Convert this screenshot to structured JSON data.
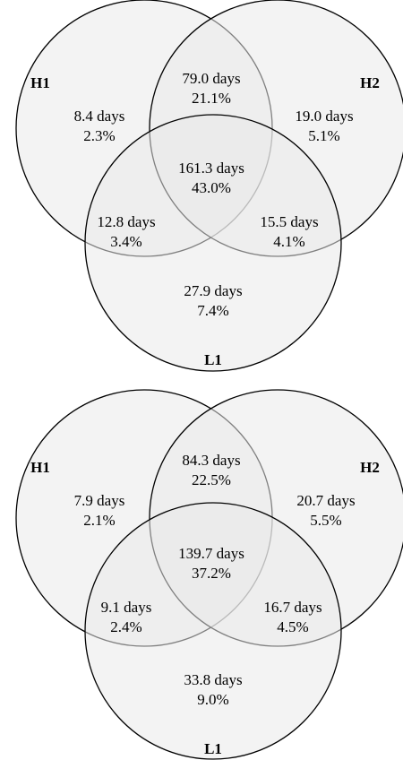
{
  "diagrams": [
    {
      "sets": [
        "H1",
        "H2",
        "L1"
      ],
      "regions": {
        "h1_only": {
          "days": "8.4 days",
          "pct": "2.3%"
        },
        "h1_h2": {
          "days": "79.0 days",
          "pct": "21.1%"
        },
        "h2_only": {
          "days": "19.0 days",
          "pct": "5.1%"
        },
        "all": {
          "days": "161.3 days",
          "pct": "43.0%"
        },
        "h1_l1": {
          "days": "12.8 days",
          "pct": "3.4%"
        },
        "h2_l1": {
          "days": "15.5 days",
          "pct": "4.1%"
        },
        "l1_only": {
          "days": "27.9 days",
          "pct": "7.4%"
        }
      }
    },
    {
      "sets": [
        "H1",
        "H2",
        "L1"
      ],
      "regions": {
        "h1_only": {
          "days": "7.9 days",
          "pct": "2.1%"
        },
        "h1_h2": {
          "days": "84.3 days",
          "pct": "22.5%"
        },
        "h2_only": {
          "days": "20.7 days",
          "pct": "5.5%"
        },
        "all": {
          "days": "139.7 days",
          "pct": "37.2%"
        },
        "h1_l1": {
          "days": "9.1 days",
          "pct": "2.4%"
        },
        "h2_l1": {
          "days": "16.7 days",
          "pct": "4.5%"
        },
        "l1_only": {
          "days": "33.8 days",
          "pct": "9.0%"
        }
      }
    }
  ]
}
